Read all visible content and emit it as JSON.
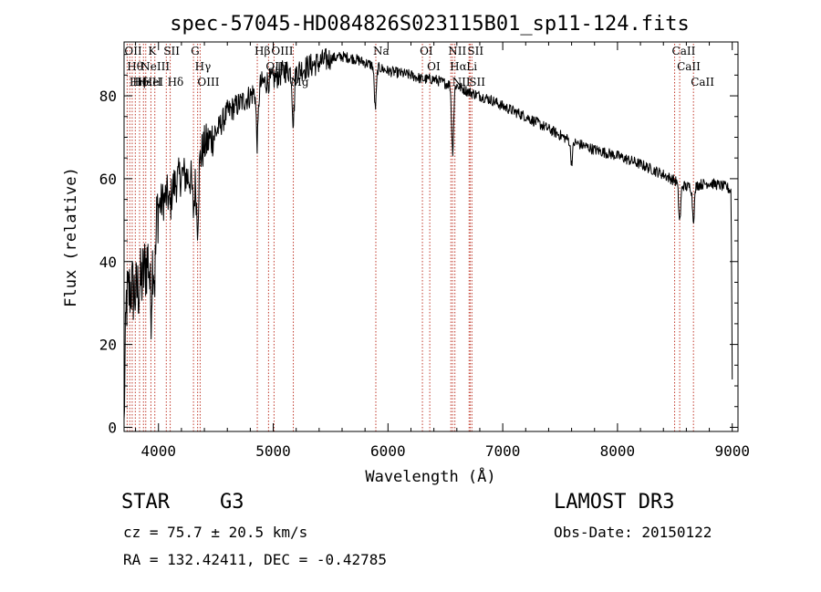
{
  "chart_data": {
    "type": "line",
    "title": "spec-57045-HD084826S023115B01_sp11-124.fits",
    "xlabel": "Wavelength (Å)",
    "ylabel": "Flux (relative)",
    "xlim": [
      3700,
      9050
    ],
    "ylim": [
      -1,
      93
    ],
    "x_ticks": [
      4000,
      5000,
      6000,
      7000,
      8000,
      9000
    ],
    "y_ticks": [
      0,
      20,
      40,
      60,
      80
    ],
    "spectrum_anchor_points": [
      {
        "x": 3700,
        "y": 2
      },
      {
        "x": 3720,
        "y": 30
      },
      {
        "x": 3760,
        "y": 34
      },
      {
        "x": 3800,
        "y": 32
      },
      {
        "x": 3850,
        "y": 35
      },
      {
        "x": 3900,
        "y": 40
      },
      {
        "x": 3950,
        "y": 45
      },
      {
        "x": 3990,
        "y": 53
      },
      {
        "x": 4050,
        "y": 55
      },
      {
        "x": 4100,
        "y": 57
      },
      {
        "x": 4150,
        "y": 59
      },
      {
        "x": 4200,
        "y": 61
      },
      {
        "x": 4300,
        "y": 60
      },
      {
        "x": 4400,
        "y": 68
      },
      {
        "x": 4500,
        "y": 71
      },
      {
        "x": 4600,
        "y": 76
      },
      {
        "x": 4700,
        "y": 78
      },
      {
        "x": 4800,
        "y": 80
      },
      {
        "x": 4900,
        "y": 83
      },
      {
        "x": 5000,
        "y": 84
      },
      {
        "x": 5100,
        "y": 86
      },
      {
        "x": 5200,
        "y": 86
      },
      {
        "x": 5300,
        "y": 87
      },
      {
        "x": 5400,
        "y": 88
      },
      {
        "x": 5500,
        "y": 89
      },
      {
        "x": 5600,
        "y": 89.5
      },
      {
        "x": 5700,
        "y": 89
      },
      {
        "x": 5800,
        "y": 88
      },
      {
        "x": 5900,
        "y": 87
      },
      {
        "x": 6000,
        "y": 86
      },
      {
        "x": 6100,
        "y": 85.5
      },
      {
        "x": 6200,
        "y": 85
      },
      {
        "x": 6300,
        "y": 84
      },
      {
        "x": 6400,
        "y": 84
      },
      {
        "x": 6500,
        "y": 83
      },
      {
        "x": 6600,
        "y": 82.5
      },
      {
        "x": 6700,
        "y": 81
      },
      {
        "x": 6800,
        "y": 80
      },
      {
        "x": 6900,
        "y": 79
      },
      {
        "x": 7000,
        "y": 77.5
      },
      {
        "x": 7200,
        "y": 75
      },
      {
        "x": 7400,
        "y": 72
      },
      {
        "x": 7600,
        "y": 69
      },
      {
        "x": 7800,
        "y": 67
      },
      {
        "x": 8000,
        "y": 65.5
      },
      {
        "x": 8200,
        "y": 63.5
      },
      {
        "x": 8400,
        "y": 61
      },
      {
        "x": 8600,
        "y": 58
      },
      {
        "x": 8800,
        "y": 59
      },
      {
        "x": 8950,
        "y": 58
      },
      {
        "x": 8990,
        "y": 57
      },
      {
        "x": 9000,
        "y": 12
      }
    ],
    "absorption_features": [
      {
        "x": 3934,
        "depth": 14
      },
      {
        "x": 3968,
        "depth": 12
      },
      {
        "x": 4101,
        "depth": 4
      },
      {
        "x": 4305,
        "depth": 8
      },
      {
        "x": 4340,
        "depth": 14
      },
      {
        "x": 4861,
        "depth": 13
      },
      {
        "x": 5175,
        "depth": 12
      },
      {
        "x": 5890,
        "depth": 10
      },
      {
        "x": 6563,
        "depth": 16
      },
      {
        "x": 7600,
        "depth": 5
      },
      {
        "x": 8542,
        "depth": 9
      },
      {
        "x": 8662,
        "depth": 8
      }
    ],
    "line_markers": [
      {
        "x": 3727,
        "label": "OII"
      },
      {
        "x": 3750,
        "label": "Hθ"
      },
      {
        "x": 3771,
        "label": "Hη"
      },
      {
        "x": 3798,
        "label": "Hδ"
      },
      {
        "x": 3835,
        "label": "Hε"
      },
      {
        "x": 3869,
        "label": "NeIII"
      },
      {
        "x": 3889,
        "label": "HeI"
      },
      {
        "x": 3934,
        "label": "K"
      },
      {
        "x": 3968,
        "label": "H"
      },
      {
        "x": 4068,
        "label": "SII"
      },
      {
        "x": 4102,
        "label": "Hδ"
      },
      {
        "x": 4305,
        "label": "G"
      },
      {
        "x": 4341,
        "label": "Hγ"
      },
      {
        "x": 4363,
        "label": "OIII"
      },
      {
        "x": 4861,
        "label": "Hβ"
      },
      {
        "x": 4959,
        "label": "OIII"
      },
      {
        "x": 5007,
        "label": "OIII"
      },
      {
        "x": 5175,
        "label": "Mg"
      },
      {
        "x": 5894,
        "label": "Na"
      },
      {
        "x": 6300,
        "label": "OI"
      },
      {
        "x": 6364,
        "label": "OI"
      },
      {
        "x": 6548,
        "label": "NII"
      },
      {
        "x": 6563,
        "label": "Hα"
      },
      {
        "x": 6583,
        "label": "NII"
      },
      {
        "x": 6707,
        "label": "Li"
      },
      {
        "x": 6716,
        "label": "SII"
      },
      {
        "x": 6731,
        "label": "SII"
      },
      {
        "x": 8498,
        "label": "CaII"
      },
      {
        "x": 8542,
        "label": "CaII"
      },
      {
        "x": 8662,
        "label": "CaII"
      }
    ]
  },
  "info": {
    "object_class": "STAR",
    "subclass": "G3",
    "survey": "LAMOST DR3",
    "redshift_line": "cz = 75.7 ± 20.5 km/s",
    "obs_date_line": "Obs-Date: 20150122",
    "coords_line": "RA = 132.42411, DEC =  -0.42785"
  },
  "colors": {
    "spectrum": "#000000",
    "marker_line": "#c0392b",
    "axes": "#000000"
  }
}
